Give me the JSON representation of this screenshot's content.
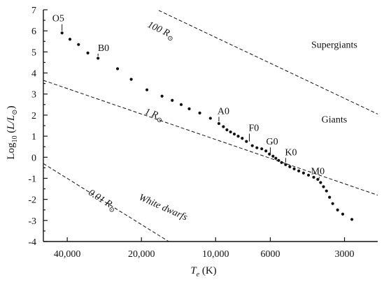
{
  "chart_data": {
    "type": "scatter",
    "title": "",
    "xlabel_main": "T",
    "xlabel_sub": "e",
    "xlabel_unit": " (K)",
    "ylabel_main": "Log",
    "ylabel_sub": "10",
    "ylabel_paren_open": " (",
    "ylabel_frac": "L/L",
    "ylabel_sun": "⊙",
    "ylabel_paren_close": ")",
    "x_scale": "log-reversed",
    "xlim": [
      50000,
      2200
    ],
    "ylim": [
      -4,
      7
    ],
    "x_ticks": [
      {
        "value": 40000,
        "label": "40,000"
      },
      {
        "value": 20000,
        "label": "20,000"
      },
      {
        "value": 10000,
        "label": "10,000"
      },
      {
        "value": 6000,
        "label": "6000"
      },
      {
        "value": 3000,
        "label": "3000"
      }
    ],
    "y_ticks": [
      {
        "value": 7,
        "label": "7"
      },
      {
        "value": 6,
        "label": "6"
      },
      {
        "value": 5,
        "label": "5"
      },
      {
        "value": 4,
        "label": "4"
      },
      {
        "value": 3,
        "label": "3"
      },
      {
        "value": 2,
        "label": "2"
      },
      {
        "value": 1,
        "label": "1"
      },
      {
        "value": 0,
        "label": "0"
      },
      {
        "value": -1,
        "label": "-1"
      },
      {
        "value": -2,
        "label": "-2"
      },
      {
        "value": -3,
        "label": "-3"
      },
      {
        "value": -4,
        "label": "-4"
      }
    ],
    "main_sequence": [
      {
        "x": 42000,
        "y": 5.9
      },
      {
        "x": 39000,
        "y": 5.6
      },
      {
        "x": 36000,
        "y": 5.35
      },
      {
        "x": 33000,
        "y": 4.95
      },
      {
        "x": 30000,
        "y": 4.7
      },
      {
        "x": 25000,
        "y": 4.2
      },
      {
        "x": 22000,
        "y": 3.7
      },
      {
        "x": 19000,
        "y": 3.2
      },
      {
        "x": 16500,
        "y": 2.9
      },
      {
        "x": 15000,
        "y": 2.7
      },
      {
        "x": 13800,
        "y": 2.5
      },
      {
        "x": 12800,
        "y": 2.3
      },
      {
        "x": 11600,
        "y": 2.1
      },
      {
        "x": 10500,
        "y": 1.85
      },
      {
        "x": 9700,
        "y": 1.6
      },
      {
        "x": 9300,
        "y": 1.45
      },
      {
        "x": 9000,
        "y": 1.3
      },
      {
        "x": 8700,
        "y": 1.2
      },
      {
        "x": 8400,
        "y": 1.1
      },
      {
        "x": 8100,
        "y": 1.0
      },
      {
        "x": 7800,
        "y": 0.9
      },
      {
        "x": 7500,
        "y": 0.75
      },
      {
        "x": 7100,
        "y": 0.55
      },
      {
        "x": 6800,
        "y": 0.45
      },
      {
        "x": 6500,
        "y": 0.4
      },
      {
        "x": 6250,
        "y": 0.3
      },
      {
        "x": 6050,
        "y": 0.15
      },
      {
        "x": 5850,
        "y": 0.05
      },
      {
        "x": 5700,
        "y": -0.05
      },
      {
        "x": 5550,
        "y": -0.15
      },
      {
        "x": 5400,
        "y": -0.25
      },
      {
        "x": 5200,
        "y": -0.35
      },
      {
        "x": 5000,
        "y": -0.45
      },
      {
        "x": 4800,
        "y": -0.55
      },
      {
        "x": 4600,
        "y": -0.65
      },
      {
        "x": 4400,
        "y": -0.75
      },
      {
        "x": 4200,
        "y": -0.85
      },
      {
        "x": 4000,
        "y": -0.95
      },
      {
        "x": 3850,
        "y": -1.05
      },
      {
        "x": 3750,
        "y": -1.2
      },
      {
        "x": 3650,
        "y": -1.4
      },
      {
        "x": 3550,
        "y": -1.6
      },
      {
        "x": 3450,
        "y": -1.9
      },
      {
        "x": 3350,
        "y": -2.2
      },
      {
        "x": 3200,
        "y": -2.5
      },
      {
        "x": 3050,
        "y": -2.7
      },
      {
        "x": 2800,
        "y": -2.95
      }
    ],
    "spectral_labels": [
      {
        "label": "O5",
        "x": 42000,
        "y": 5.9,
        "text_x": 43500,
        "text_y": 6.45
      },
      {
        "label": "B0",
        "x": 30000,
        "y": 4.7,
        "text_x": 28500,
        "text_y": 5.05
      },
      {
        "label": "A0",
        "x": 9700,
        "y": 1.6,
        "text_x": 9300,
        "text_y": 2.05
      },
      {
        "label": "F0",
        "x": 7300,
        "y": 0.65,
        "text_x": 7000,
        "text_y": 1.25
      },
      {
        "label": "G0",
        "x": 6000,
        "y": 0.1,
        "text_x": 5900,
        "text_y": 0.6
      },
      {
        "label": "K0",
        "x": 5200,
        "y": -0.35,
        "text_x": 4950,
        "text_y": 0.1
      },
      {
        "label": "M0",
        "x": 3800,
        "y": -1.1,
        "text_x": 3850,
        "text_y": -0.8
      }
    ],
    "radius_lines": [
      {
        "label": "100 R",
        "sun": "⊙",
        "p1": {
          "x": 38000,
          "y": 8.9
        },
        "p2": {
          "x": 2200,
          "y": 2.05
        },
        "label_x": 19000,
        "label_y": 6.2
      },
      {
        "label": "1 R",
        "sun": "⊙",
        "p1": {
          "x": 50000,
          "y": 3.65
        },
        "p2": {
          "x": 2200,
          "y": -1.8
        },
        "label_x": 19500,
        "label_y": 2.05
      },
      {
        "label": "0.01 R",
        "sun": "⊙",
        "p1": {
          "x": 50000,
          "y": -0.3
        },
        "p2": {
          "x": 15500,
          "y": -4.0
        },
        "label_x": 33000,
        "label_y": -1.75
      }
    ],
    "region_labels": [
      {
        "text": "Supergiants",
        "x": 3300,
        "y": 5.2
      },
      {
        "text": "Giants",
        "x": 3300,
        "y": 1.65
      },
      {
        "text": "White dwarfs",
        "x": 16500,
        "y": -2.5
      }
    ],
    "grid": false,
    "legend": "none"
  }
}
